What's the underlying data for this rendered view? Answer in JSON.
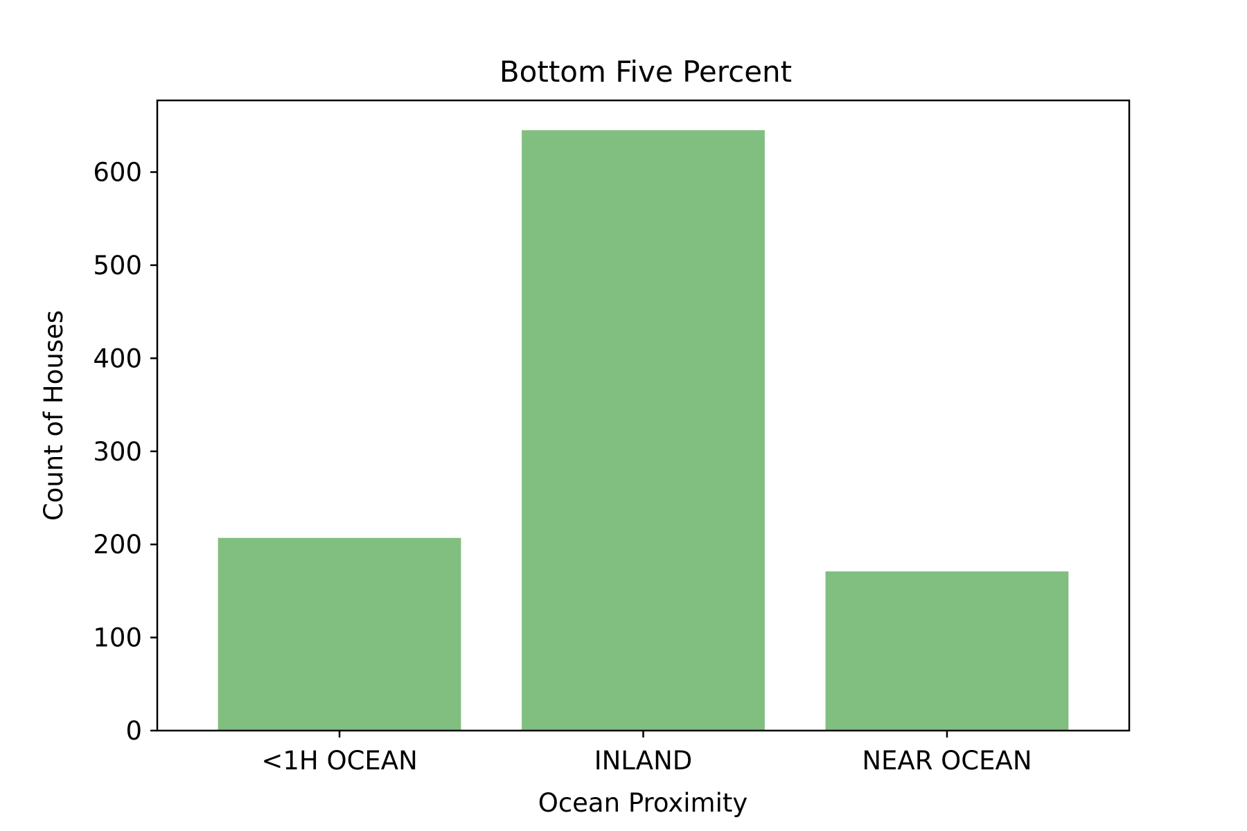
{
  "chart_data": {
    "type": "bar",
    "title": "Bottom Five Percent",
    "xlabel": "Ocean Proximity",
    "ylabel": "Count of Houses",
    "categories": [
      "<1H OCEAN",
      "INLAND",
      "NEAR OCEAN"
    ],
    "values": [
      207,
      645,
      171
    ],
    "ylim": [
      0,
      677
    ],
    "yticks": [
      0,
      100,
      200,
      300,
      400,
      500,
      600
    ],
    "grid": false,
    "bar_color": "#80bf80",
    "axis_color": "#000000"
  }
}
